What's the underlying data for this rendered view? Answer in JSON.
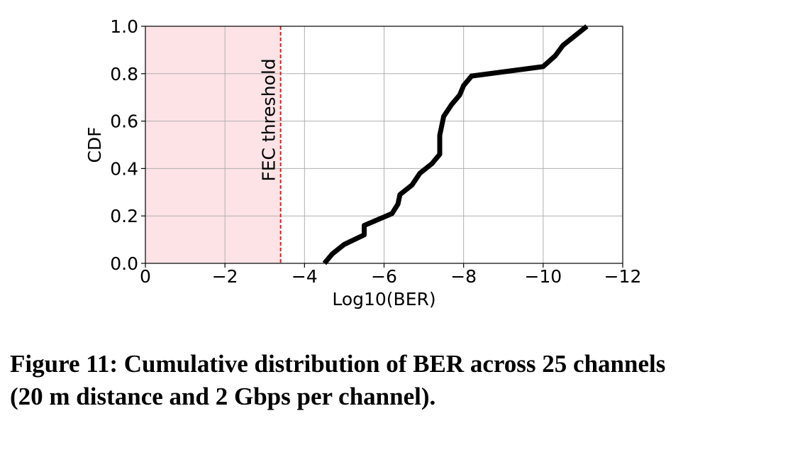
{
  "chart_data": {
    "type": "line",
    "xlabel": "Log10(BER)",
    "ylabel": "CDF",
    "xlim": [
      0,
      -12
    ],
    "ylim": [
      0,
      1.0
    ],
    "x_ticks": [
      0,
      -2,
      -4,
      -6,
      -8,
      -10,
      -12
    ],
    "x_tick_labels": [
      "0",
      "−2",
      "−4",
      "−6",
      "−8",
      "−10",
      "−12"
    ],
    "y_ticks": [
      0,
      0.2,
      0.4,
      0.6,
      0.8,
      1.0
    ],
    "y_tick_labels": [
      "0.0",
      "0.2",
      "0.4",
      "0.6",
      "0.8",
      "1.0"
    ],
    "grid": true,
    "series": [
      {
        "color": "#000000",
        "x": [
          -4.5,
          -4.7,
          -5.0,
          -5.5,
          -5.5,
          -6.2,
          -6.35,
          -6.4,
          -6.7,
          -6.9,
          -7.2,
          -7.4,
          -7.4,
          -7.5,
          -7.7,
          -7.9,
          -8.0,
          -8.2,
          -10.0,
          -10.3,
          -10.5,
          -10.8,
          -11.1
        ],
        "y": [
          0.0,
          0.04,
          0.08,
          0.12,
          0.16,
          0.21,
          0.25,
          0.29,
          0.33,
          0.38,
          0.42,
          0.46,
          0.54,
          0.62,
          0.67,
          0.71,
          0.75,
          0.79,
          0.83,
          0.875,
          0.92,
          0.96,
          1.0
        ]
      }
    ],
    "shaded_region": {
      "x_from": 0,
      "x_to": -3.4,
      "color": "#fde3e6"
    },
    "threshold": {
      "x": -3.4,
      "label": "FEC threshold",
      "color": "#e01b1b"
    }
  },
  "caption": {
    "line1": "Figure 11: Cumulative distribution of BER across 25 channels",
    "line2": "(20 m distance and 2 Gbps per channel)."
  }
}
